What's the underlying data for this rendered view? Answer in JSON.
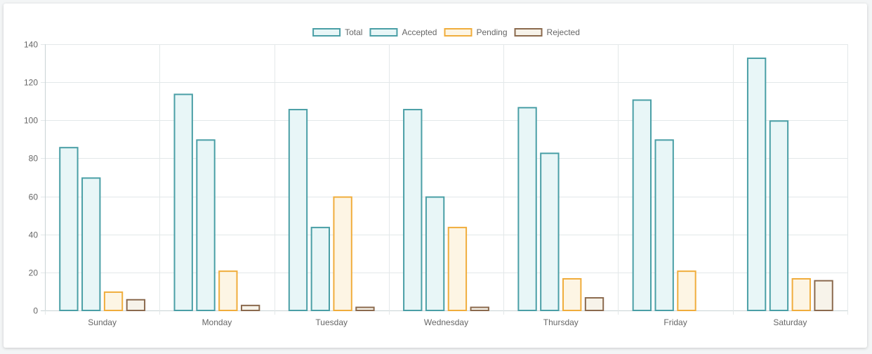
{
  "chart_data": {
    "type": "bar",
    "categories": [
      "Sunday",
      "Monday",
      "Tuesday",
      "Wednesday",
      "Thursday",
      "Friday",
      "Saturday"
    ],
    "series": [
      {
        "name": "Total",
        "values": [
          86,
          114,
          106,
          106,
          107,
          111,
          133
        ],
        "stroke": "#4a9fa6",
        "fill": "#e8f6f7"
      },
      {
        "name": "Accepted",
        "values": [
          70,
          90,
          44,
          60,
          83,
          90,
          100
        ],
        "stroke": "#4a9fa6",
        "fill": "#e8f6f7"
      },
      {
        "name": "Pending",
        "values": [
          10,
          21,
          60,
          44,
          17,
          21,
          17
        ],
        "stroke": "#f0ad3c",
        "fill": "#fdf5e4"
      },
      {
        "name": "Rejected",
        "values": [
          6,
          3,
          2,
          2,
          7,
          0,
          16
        ],
        "stroke": "#8b6a4e",
        "fill": "#f7f3ea"
      }
    ],
    "title": "",
    "xlabel": "",
    "ylabel": "",
    "ylim": [
      0,
      140
    ],
    "yticks": [
      0,
      20,
      40,
      60,
      80,
      100,
      120,
      140
    ],
    "grid": true,
    "legend_position": "top-center"
  }
}
